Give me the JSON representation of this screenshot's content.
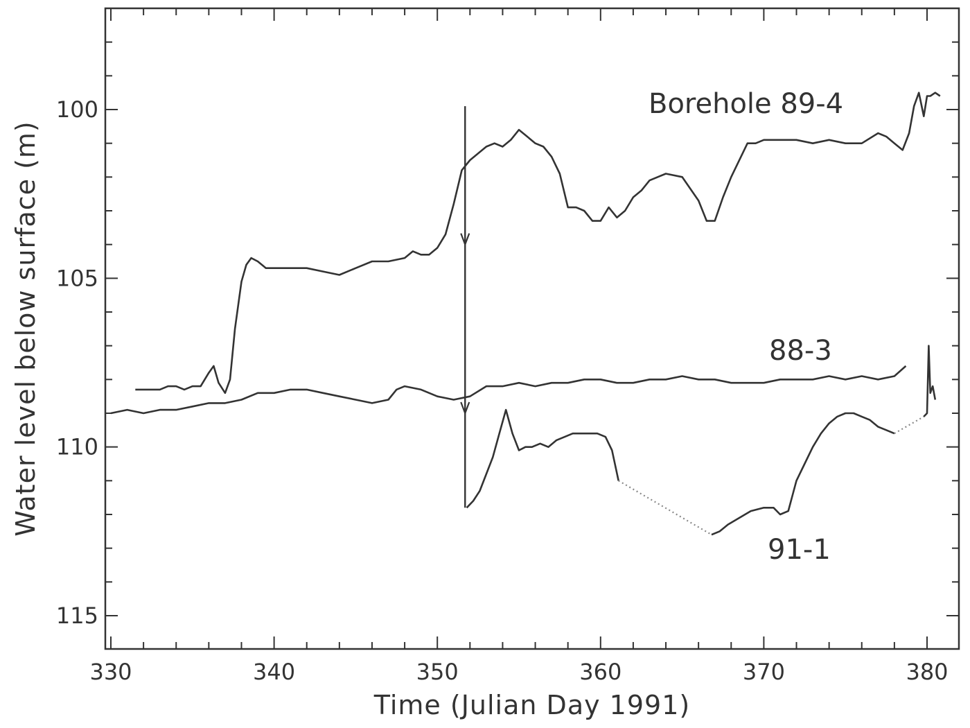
{
  "chart_data": {
    "type": "line",
    "title": "",
    "xlabel": "Time (Julian Day 1991)",
    "ylabel": "Water level below surface (m)",
    "xlim": [
      330,
      381
    ],
    "ylim": [
      116,
      97
    ],
    "y_inverted": true,
    "x_ticks": [
      330,
      340,
      350,
      360,
      370,
      380
    ],
    "x_tick_labels": [
      "330",
      "340",
      "350",
      "360",
      "370",
      "380"
    ],
    "y_ticks": [
      100,
      105,
      110,
      115
    ],
    "y_tick_labels": [
      "100",
      "105",
      "110",
      "115"
    ],
    "grid": false,
    "series": [
      {
        "name": "Borehole 89-4",
        "x": [
          331.5,
          332,
          332.5,
          333,
          333.5,
          334,
          334.5,
          335,
          335.5,
          336,
          336.3,
          336.6,
          337,
          337.3,
          337.6,
          338,
          338.3,
          338.6,
          339,
          339.5,
          340,
          341,
          342,
          343,
          344,
          345,
          346,
          347,
          348,
          348.5,
          349,
          349.5,
          350,
          350.5,
          351,
          351.5,
          352,
          352.5,
          353,
          353.5,
          354,
          354.5,
          355,
          355.5,
          356,
          356.5,
          357,
          357.5,
          358,
          358.5,
          359,
          359.5,
          360,
          360.5,
          361,
          361.5,
          362,
          362.5,
          363,
          364,
          365,
          366,
          366.5,
          367,
          367.5,
          368,
          369,
          369.5,
          370,
          371,
          372,
          373,
          374,
          375,
          376,
          377,
          377.5,
          378,
          378.5,
          378.9,
          379.2,
          379.5,
          379.8,
          380,
          380.2,
          380.5,
          380.8
        ],
        "y": [
          108.3,
          108.3,
          108.3,
          108.3,
          108.2,
          108.2,
          108.3,
          108.2,
          108.2,
          107.8,
          107.6,
          108.1,
          108.4,
          108.0,
          106.5,
          105.1,
          104.6,
          104.4,
          104.5,
          104.7,
          104.7,
          104.7,
          104.7,
          104.8,
          104.9,
          104.7,
          104.5,
          104.5,
          104.4,
          104.2,
          104.3,
          104.3,
          104.1,
          103.7,
          102.8,
          101.8,
          101.5,
          101.3,
          101.1,
          101.0,
          101.1,
          100.9,
          100.6,
          100.8,
          101.0,
          101.1,
          101.4,
          101.9,
          102.9,
          102.9,
          103.0,
          103.3,
          103.3,
          102.9,
          103.2,
          103.0,
          102.6,
          102.4,
          102.1,
          101.9,
          102.0,
          102.7,
          103.3,
          103.3,
          102.6,
          102.0,
          101.0,
          101.0,
          100.9,
          100.9,
          100.9,
          101.0,
          100.9,
          101.0,
          101.0,
          100.7,
          100.8,
          101.0,
          101.2,
          100.7,
          99.9,
          99.5,
          100.2,
          99.6,
          99.6,
          99.5,
          99.6
        ]
      },
      {
        "name": "88-3",
        "x": [
          330,
          331,
          332,
          333,
          334,
          335,
          336,
          337,
          338,
          339,
          340,
          341,
          342,
          343,
          344,
          345,
          346,
          347,
          347.5,
          348,
          349,
          350,
          351,
          352,
          353,
          354,
          355,
          356,
          357,
          358,
          359,
          360,
          361,
          362,
          363,
          364,
          365,
          366,
          367,
          368,
          369,
          370,
          371,
          372,
          373,
          374,
          375,
          376,
          377,
          378,
          378.7
        ],
        "y": [
          109.0,
          108.9,
          109.0,
          108.9,
          108.9,
          108.8,
          108.7,
          108.7,
          108.6,
          108.4,
          108.4,
          108.3,
          108.3,
          108.4,
          108.5,
          108.6,
          108.7,
          108.6,
          108.3,
          108.2,
          108.3,
          108.5,
          108.6,
          108.5,
          108.2,
          108.2,
          108.1,
          108.2,
          108.1,
          108.1,
          108.0,
          108.0,
          108.1,
          108.1,
          108.0,
          108.0,
          107.9,
          108.0,
          108.0,
          108.1,
          108.1,
          108.1,
          108.0,
          108.0,
          108.0,
          107.9,
          108.0,
          107.9,
          108.0,
          107.9,
          107.6
        ]
      },
      {
        "name": "91-1",
        "x": [
          351.8,
          352.2,
          352.6,
          353,
          353.4,
          353.8,
          354.2,
          354.6,
          355,
          355.4,
          355.8,
          356.3,
          356.8,
          357.3,
          357.8,
          358.3,
          358.8,
          359.3,
          359.8,
          360.3,
          360.7,
          361.1
        ],
        "y": [
          111.8,
          111.6,
          111.3,
          110.8,
          110.3,
          109.6,
          108.9,
          109.6,
          110.1,
          110.0,
          110.0,
          109.9,
          110.0,
          109.8,
          109.7,
          109.6,
          109.6,
          109.6,
          109.6,
          109.7,
          110.1,
          111.0
        ]
      },
      {
        "name": "91-1",
        "x": [
          366.8,
          367.3,
          367.8,
          368.5,
          369.2,
          370,
          370.6,
          371,
          371.5,
          372,
          372.5,
          373,
          373.5,
          374,
          374.5,
          375,
          375.5,
          376,
          376.5,
          377,
          377.5,
          378
        ],
        "y": [
          112.6,
          112.5,
          112.3,
          112.1,
          111.9,
          111.8,
          111.8,
          112.0,
          111.9,
          111.0,
          110.5,
          110.0,
          109.6,
          109.3,
          109.1,
          109.0,
          109.0,
          109.1,
          109.2,
          109.4,
          109.5,
          109.6
        ]
      },
      {
        "name": "91-1",
        "x": [
          379.8,
          380,
          380.1,
          380.2,
          380.35,
          380.5
        ],
        "y": [
          109.1,
          109.0,
          107.0,
          108.4,
          108.2,
          108.6
        ]
      }
    ],
    "gaps": [
      {
        "x": [
          361.1,
          366.8
        ],
        "y": [
          111.0,
          112.6
        ]
      },
      {
        "x": [
          378,
          379.8
        ],
        "y": [
          109.6,
          109.1
        ]
      }
    ],
    "event": {
      "x": 351.7,
      "y": [
        99.9,
        111.8
      ]
    },
    "labels": {
      "borehole_89_4": "Borehole 89-4",
      "borehole_88_3": "88-3",
      "borehole_91_1": "91-1"
    }
  }
}
